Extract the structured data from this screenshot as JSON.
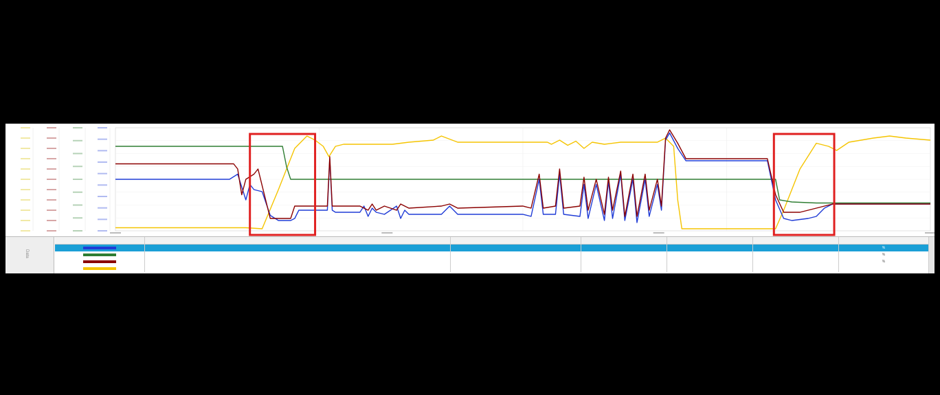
{
  "app": {
    "accent": "#1a9fd6",
    "highlight_color": "#e02020",
    "side_tab_label": "Data",
    "scrollbar_icon": "vertical-scrollbar"
  },
  "chart_data": {
    "type": "line",
    "title": "",
    "grid": true,
    "y_axes": [
      {
        "color": "#d8c000",
        "ticks": [
          "",
          "",
          "",
          "",
          "",
          "",
          "",
          "",
          "",
          "",
          ""
        ]
      },
      {
        "color": "#8b0000",
        "ticks": [
          "",
          "",
          "",
          "",
          "",
          "",
          "",
          "",
          "",
          "",
          ""
        ]
      },
      {
        "color": "#2e7d32",
        "ticks": [
          "",
          "",
          "",
          "",
          "",
          "",
          "",
          "",
          ""
        ]
      },
      {
        "color": "#1f3bd6",
        "ticks": [
          "",
          "",
          "",
          "",
          "",
          "",
          "",
          "",
          "",
          ""
        ]
      }
    ],
    "x_ticks": [
      "",
      "",
      "",
      ""
    ],
    "highlight_boxes": [
      {
        "x_range": [
          0.165,
          0.245
        ]
      },
      {
        "x_range": [
          0.808,
          0.882
        ]
      }
    ],
    "series": [
      {
        "color": "#f5c400",
        "points": [
          [
            0,
            0.03
          ],
          [
            0.16,
            0.03
          ],
          [
            0.18,
            0.02
          ],
          [
            0.2,
            0.4
          ],
          [
            0.22,
            0.8
          ],
          [
            0.235,
            0.92
          ],
          [
            0.245,
            0.88
          ],
          [
            0.255,
            0.82
          ],
          [
            0.262,
            0.72
          ],
          [
            0.27,
            0.82
          ],
          [
            0.28,
            0.84
          ],
          [
            0.34,
            0.84
          ],
          [
            0.36,
            0.86
          ],
          [
            0.39,
            0.88
          ],
          [
            0.4,
            0.92
          ],
          [
            0.42,
            0.86
          ],
          [
            0.45,
            0.86
          ],
          [
            0.5,
            0.86
          ],
          [
            0.53,
            0.86
          ],
          [
            0.53,
            0.86
          ],
          [
            0.535,
            0.84
          ],
          [
            0.545,
            0.88
          ],
          [
            0.555,
            0.83
          ],
          [
            0.565,
            0.87
          ],
          [
            0.575,
            0.8
          ],
          [
            0.585,
            0.86
          ],
          [
            0.6,
            0.84
          ],
          [
            0.62,
            0.86
          ],
          [
            0.65,
            0.86
          ],
          [
            0.665,
            0.86
          ],
          [
            0.675,
            0.9
          ],
          [
            0.685,
            0.82
          ],
          [
            0.69,
            0.3
          ],
          [
            0.695,
            0.02
          ],
          [
            0.8,
            0.02
          ],
          [
            0.81,
            0.02
          ],
          [
            0.82,
            0.2
          ],
          [
            0.84,
            0.6
          ],
          [
            0.86,
            0.85
          ],
          [
            0.875,
            0.82
          ],
          [
            0.885,
            0.78
          ],
          [
            0.9,
            0.86
          ],
          [
            0.93,
            0.9
          ],
          [
            0.95,
            0.92
          ],
          [
            0.97,
            0.9
          ],
          [
            1,
            0.88
          ]
        ]
      },
      {
        "color": "#2e7d32",
        "points": [
          [
            0,
            0.82
          ],
          [
            0.205,
            0.82
          ],
          [
            0.21,
            0.62
          ],
          [
            0.215,
            0.5
          ],
          [
            0.22,
            0.5
          ],
          [
            0.81,
            0.5
          ],
          [
            0.815,
            0.3
          ],
          [
            0.83,
            0.28
          ],
          [
            0.86,
            0.27
          ],
          [
            0.88,
            0.27
          ],
          [
            1,
            0.27
          ]
        ]
      },
      {
        "color": "#1f3bd6",
        "points": [
          [
            0,
            0.5
          ],
          [
            0.14,
            0.5
          ],
          [
            0.15,
            0.55
          ],
          [
            0.16,
            0.3
          ],
          [
            0.165,
            0.45
          ],
          [
            0.17,
            0.4
          ],
          [
            0.18,
            0.38
          ],
          [
            0.19,
            0.15
          ],
          [
            0.2,
            0.1
          ],
          [
            0.215,
            0.1
          ],
          [
            0.22,
            0.12
          ],
          [
            0.225,
            0.2
          ],
          [
            0.26,
            0.2
          ],
          [
            0.263,
            0.7
          ],
          [
            0.266,
            0.2
          ],
          [
            0.27,
            0.18
          ],
          [
            0.3,
            0.18
          ],
          [
            0.305,
            0.24
          ],
          [
            0.31,
            0.14
          ],
          [
            0.315,
            0.22
          ],
          [
            0.32,
            0.18
          ],
          [
            0.33,
            0.16
          ],
          [
            0.345,
            0.24
          ],
          [
            0.35,
            0.12
          ],
          [
            0.355,
            0.2
          ],
          [
            0.36,
            0.16
          ],
          [
            0.4,
            0.16
          ],
          [
            0.41,
            0.24
          ],
          [
            0.42,
            0.16
          ],
          [
            0.5,
            0.16
          ],
          [
            0.51,
            0.14
          ],
          [
            0.52,
            0.5
          ],
          [
            0.525,
            0.16
          ],
          [
            0.54,
            0.16
          ],
          [
            0.545,
            0.55
          ],
          [
            0.55,
            0.16
          ],
          [
            0.57,
            0.14
          ],
          [
            0.575,
            0.45
          ],
          [
            0.58,
            0.12
          ],
          [
            0.59,
            0.45
          ],
          [
            0.6,
            0.1
          ],
          [
            0.605,
            0.48
          ],
          [
            0.61,
            0.12
          ],
          [
            0.62,
            0.55
          ],
          [
            0.625,
            0.1
          ],
          [
            0.635,
            0.5
          ],
          [
            0.64,
            0.08
          ],
          [
            0.65,
            0.5
          ],
          [
            0.655,
            0.14
          ],
          [
            0.665,
            0.45
          ],
          [
            0.67,
            0.2
          ],
          [
            0.675,
            0.88
          ],
          [
            0.68,
            0.95
          ],
          [
            0.69,
            0.8
          ],
          [
            0.7,
            0.68
          ],
          [
            0.8,
            0.68
          ],
          [
            0.81,
            0.3
          ],
          [
            0.82,
            0.12
          ],
          [
            0.83,
            0.1
          ],
          [
            0.85,
            0.12
          ],
          [
            0.86,
            0.14
          ],
          [
            0.87,
            0.22
          ],
          [
            0.88,
            0.26
          ],
          [
            0.9,
            0.26
          ],
          [
            1,
            0.26
          ]
        ]
      },
      {
        "color": "#8b0000",
        "points": [
          [
            0,
            0.65
          ],
          [
            0.145,
            0.65
          ],
          [
            0.15,
            0.6
          ],
          [
            0.155,
            0.35
          ],
          [
            0.16,
            0.5
          ],
          [
            0.17,
            0.55
          ],
          [
            0.175,
            0.6
          ],
          [
            0.19,
            0.12
          ],
          [
            0.2,
            0.12
          ],
          [
            0.215,
            0.12
          ],
          [
            0.22,
            0.24
          ],
          [
            0.26,
            0.24
          ],
          [
            0.263,
            0.72
          ],
          [
            0.266,
            0.24
          ],
          [
            0.3,
            0.24
          ],
          [
            0.31,
            0.2
          ],
          [
            0.315,
            0.26
          ],
          [
            0.32,
            0.2
          ],
          [
            0.33,
            0.24
          ],
          [
            0.345,
            0.2
          ],
          [
            0.35,
            0.26
          ],
          [
            0.36,
            0.22
          ],
          [
            0.4,
            0.24
          ],
          [
            0.41,
            0.26
          ],
          [
            0.42,
            0.22
          ],
          [
            0.5,
            0.24
          ],
          [
            0.51,
            0.22
          ],
          [
            0.52,
            0.55
          ],
          [
            0.525,
            0.22
          ],
          [
            0.54,
            0.24
          ],
          [
            0.545,
            0.6
          ],
          [
            0.55,
            0.22
          ],
          [
            0.57,
            0.24
          ],
          [
            0.575,
            0.52
          ],
          [
            0.58,
            0.2
          ],
          [
            0.59,
            0.5
          ],
          [
            0.6,
            0.16
          ],
          [
            0.605,
            0.52
          ],
          [
            0.61,
            0.2
          ],
          [
            0.62,
            0.58
          ],
          [
            0.625,
            0.14
          ],
          [
            0.635,
            0.55
          ],
          [
            0.64,
            0.14
          ],
          [
            0.65,
            0.55
          ],
          [
            0.655,
            0.2
          ],
          [
            0.665,
            0.5
          ],
          [
            0.67,
            0.24
          ],
          [
            0.675,
            0.9
          ],
          [
            0.68,
            0.98
          ],
          [
            0.69,
            0.85
          ],
          [
            0.7,
            0.7
          ],
          [
            0.8,
            0.7
          ],
          [
            0.81,
            0.35
          ],
          [
            0.82,
            0.18
          ],
          [
            0.84,
            0.18
          ],
          [
            0.86,
            0.22
          ],
          [
            0.88,
            0.26
          ],
          [
            1,
            0.26
          ]
        ]
      }
    ]
  },
  "table": {
    "headers": [
      "",
      "",
      "",
      "",
      "",
      "",
      "",
      ""
    ],
    "rows": [
      {
        "color": "#1f3bd6",
        "selected": true,
        "cells": [
          "",
          "",
          "",
          "",
          "",
          "",
          "%"
        ]
      },
      {
        "color": "#2e7d32",
        "selected": false,
        "cells": [
          "",
          "",
          "",
          "",
          "",
          "",
          "%"
        ]
      },
      {
        "color": "#8b0000",
        "selected": false,
        "cells": [
          "",
          "",
          "",
          "",
          "",
          "",
          "%"
        ]
      },
      {
        "color": "#f5c400",
        "selected": false,
        "cells": [
          "",
          "",
          "",
          "",
          "",
          "",
          ""
        ]
      }
    ]
  }
}
